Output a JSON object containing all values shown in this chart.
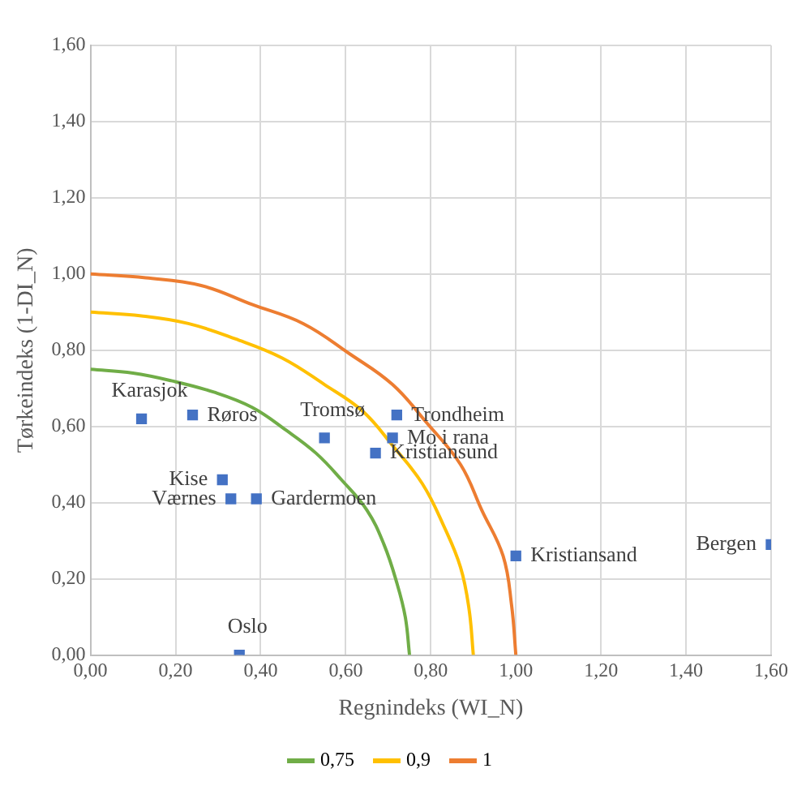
{
  "chart_data": {
    "type": "scatter",
    "xlabel": "Regnindeks (WI_N)",
    "ylabel": "Tørkeindeks (1-DI_N)",
    "xlim": [
      0,
      1.6
    ],
    "ylim": [
      0,
      1.6
    ],
    "xticks": [
      {
        "value": 0,
        "label": "0,00"
      },
      {
        "value": 0.2,
        "label": "0,20"
      },
      {
        "value": 0.4,
        "label": "0,40"
      },
      {
        "value": 0.6,
        "label": "0,60"
      },
      {
        "value": 0.8,
        "label": "0,80"
      },
      {
        "value": 1,
        "label": "1,00"
      },
      {
        "value": 1.2,
        "label": "1,20"
      },
      {
        "value": 1.4,
        "label": "1,40"
      },
      {
        "value": 1.6,
        "label": "1,60"
      }
    ],
    "yticks": [
      {
        "value": 0,
        "label": "0,00"
      },
      {
        "value": 0.2,
        "label": "0,20"
      },
      {
        "value": 0.4,
        "label": "0,40"
      },
      {
        "value": 0.6,
        "label": "0,60"
      },
      {
        "value": 0.8,
        "label": "0,80"
      },
      {
        "value": 1,
        "label": "1,00"
      },
      {
        "value": 1.2,
        "label": "1,20"
      },
      {
        "value": 1.4,
        "label": "1,40"
      },
      {
        "value": 1.6,
        "label": "1,60"
      }
    ],
    "grid": true,
    "legend": "bottom",
    "marker": "square",
    "series": [
      {
        "type": "scatter",
        "color": "#4472c4",
        "x": [
          0.12,
          0.24,
          0.55,
          0.72,
          0.71,
          0.67,
          0.31,
          0.33,
          0.39,
          0.35,
          1.0,
          1.6
        ],
        "values": [
          0.62,
          0.63,
          0.57,
          0.63,
          0.57,
          0.53,
          0.46,
          0.41,
          0.41,
          0,
          0.26,
          0.29
        ]
      },
      {
        "type": "line",
        "name": "0,75",
        "color": "#70ad47",
        "marker": "none",
        "x": [
          0,
          0.1,
          0.19,
          0.29,
          0.38,
          0.46,
          0.53,
          0.59,
          0.65,
          0.69,
          0.72,
          0.74,
          0.75
        ],
        "values": [
          0.75,
          0.74,
          0.72,
          0.69,
          0.65,
          0.59,
          0.53,
          0.46,
          0.38,
          0.29,
          0.19,
          0.1,
          0
        ]
      },
      {
        "type": "line",
        "name": "0,9",
        "color": "#ffc000",
        "marker": "none",
        "x": [
          0,
          0.12,
          0.23,
          0.34,
          0.45,
          0.55,
          0.64,
          0.71,
          0.78,
          0.83,
          0.87,
          0.89,
          0.9
        ],
        "values": [
          0.9,
          0.89,
          0.87,
          0.83,
          0.78,
          0.71,
          0.64,
          0.55,
          0.45,
          0.34,
          0.23,
          0.12,
          0
        ]
      },
      {
        "type": "line",
        "name": "1",
        "color": "#ed7d31",
        "marker": "none",
        "x": [
          0,
          0.13,
          0.26,
          0.38,
          0.5,
          0.61,
          0.71,
          0.79,
          0.87,
          0.92,
          0.97,
          0.99,
          1
        ],
        "values": [
          1,
          0.99,
          0.97,
          0.92,
          0.87,
          0.79,
          0.71,
          0.61,
          0.5,
          0.38,
          0.26,
          0.13,
          0
        ]
      }
    ],
    "annotations": [
      {
        "text": "Karasjok",
        "x": 0.12,
        "y": 0.62
      },
      {
        "text": "Røros",
        "x": 0.24,
        "y": 0.63
      },
      {
        "text": "Tromsø",
        "x": 0.55,
        "y": 0.57
      },
      {
        "text": "Trondheim",
        "x": 0.72,
        "y": 0.63
      },
      {
        "text": "Mo i rana",
        "x": 0.71,
        "y": 0.57
      },
      {
        "text": "Kristiansund",
        "x": 0.67,
        "y": 0.53
      },
      {
        "text": "Kise",
        "x": 0.31,
        "y": 0.46
      },
      {
        "text": "Værnes",
        "x": 0.33,
        "y": 0.41
      },
      {
        "text": "Gardermoen",
        "x": 0.39,
        "y": 0.41
      },
      {
        "text": "Oslo",
        "x": 0.35,
        "y": 0
      },
      {
        "text": "Kristiansand",
        "x": 1.0,
        "y": 0.26
      },
      {
        "text": "Bergen",
        "x": 1.6,
        "y": 0.29
      }
    ]
  }
}
